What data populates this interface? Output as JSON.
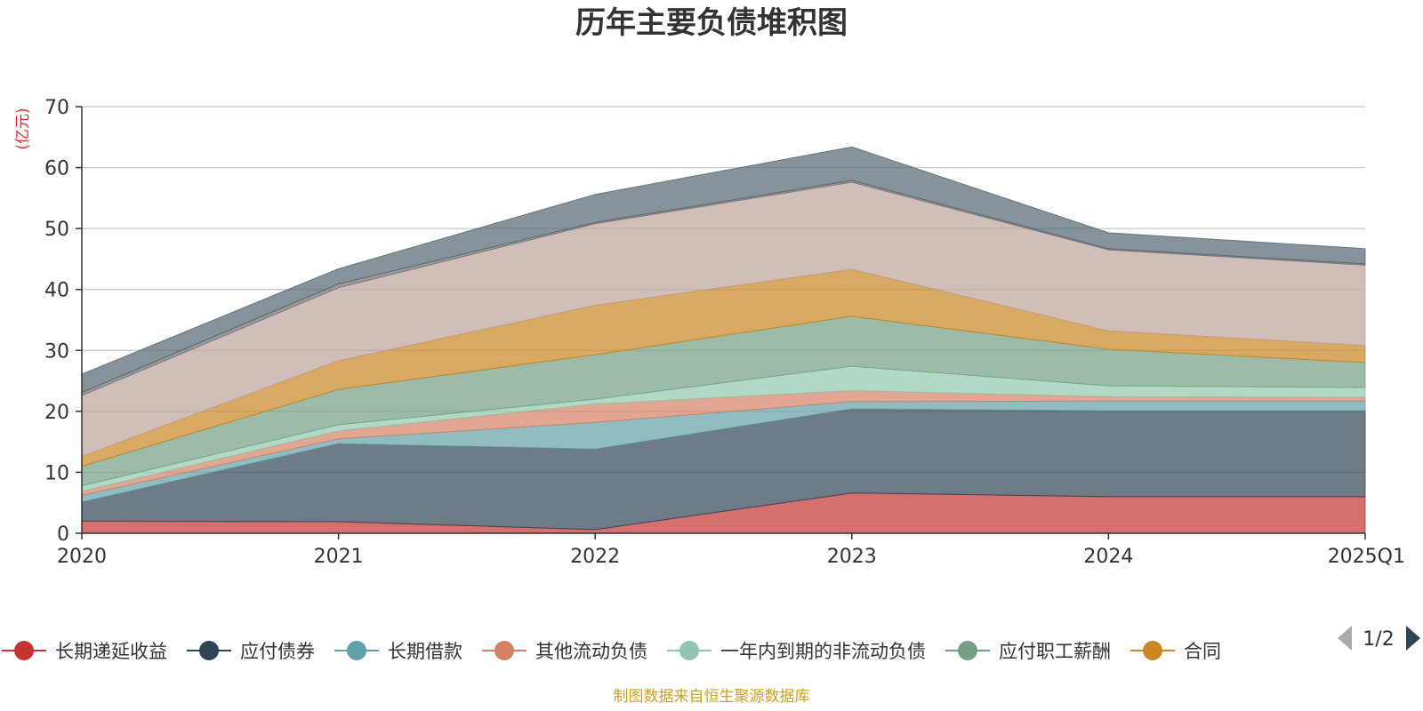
{
  "chart_data": {
    "type": "area",
    "stacked": true,
    "title": "历年主要负债堆积图",
    "ylabel": "(亿元)",
    "xlabel": "",
    "categories": [
      "2020",
      "2021",
      "2022",
      "2023",
      "2024",
      "2025Q1"
    ],
    "ylim": [
      0,
      70
    ],
    "yticks": [
      0,
      10,
      20,
      30,
      40,
      50,
      60,
      70
    ],
    "grid": true,
    "series": [
      {
        "name": "长期递延收益",
        "color": "#c23531",
        "values": [
          2.0,
          1.9,
          0.6,
          6.6,
          6.0,
          6.0
        ]
      },
      {
        "name": "应付债券",
        "color": "#2f4554",
        "values": [
          3.1,
          12.8,
          13.2,
          13.8,
          14.1,
          14.1
        ]
      },
      {
        "name": "长期借款",
        "color": "#61a0a8",
        "values": [
          1.1,
          0.8,
          4.4,
          1.2,
          1.6,
          1.6
        ]
      },
      {
        "name": "其他流动负债",
        "color": "#d48265",
        "values": [
          0.7,
          1.3,
          3.0,
          1.8,
          0.7,
          0.6
        ]
      },
      {
        "name": "一年内到期的非流动负债",
        "color": "#91c7ae",
        "values": [
          0.9,
          1.0,
          0.8,
          4.0,
          1.8,
          1.6
        ]
      },
      {
        "name": "应付职工薪酬",
        "color": "#749f83",
        "values": [
          3.2,
          5.8,
          7.3,
          8.2,
          6.0,
          4.1
        ]
      },
      {
        "name": "合同",
        "color": "#ca8622",
        "values": [
          1.6,
          4.7,
          8.1,
          7.7,
          3.0,
          2.8
        ]
      },
      {
        "name": "",
        "color": "#bda29a",
        "values": [
          10.0,
          12.0,
          13.4,
          14.3,
          13.3,
          13.2
        ]
      },
      {
        "name": "",
        "color": "#6e7074",
        "values": [
          0.5,
          0.6,
          0.2,
          0.3,
          0.2,
          0.2
        ]
      },
      {
        "name": "",
        "color": "#546570",
        "values": [
          3.0,
          2.5,
          4.6,
          5.5,
          2.6,
          2.5
        ]
      }
    ],
    "legend": {
      "placement": "bottom",
      "page": "1/2"
    },
    "source": "制图数据来自恒生聚源数据库"
  }
}
